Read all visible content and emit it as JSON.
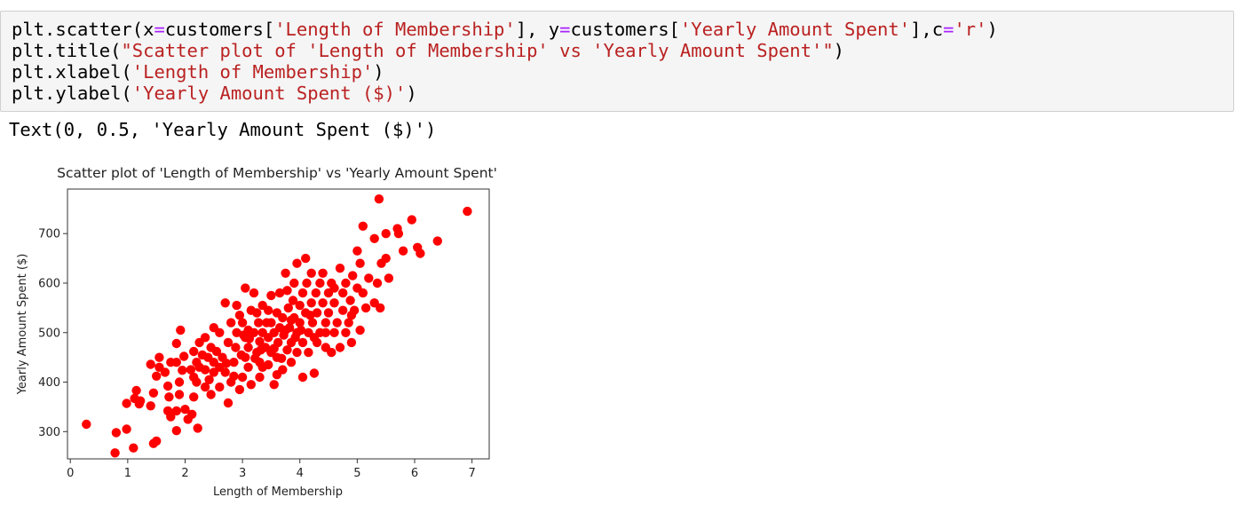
{
  "code_cell": {
    "lines": [
      [
        {
          "t": "plt.scatter(x",
          "c": ""
        },
        {
          "t": "=",
          "c": "op"
        },
        {
          "t": "customers[",
          "c": ""
        },
        {
          "t": "'Length of Membership'",
          "c": "str"
        },
        {
          "t": "], y",
          "c": ""
        },
        {
          "t": "=",
          "c": "op"
        },
        {
          "t": "customers[",
          "c": ""
        },
        {
          "t": "'Yearly Amount Spent'",
          "c": "str"
        },
        {
          "t": "],c",
          "c": ""
        },
        {
          "t": "=",
          "c": "op"
        },
        {
          "t": "'r'",
          "c": "str"
        },
        {
          "t": ")",
          "c": ""
        }
      ],
      [
        {
          "t": "plt.title(",
          "c": ""
        },
        {
          "t": "\"Scatter plot of 'Length of Membership' vs 'Yearly Amount Spent'\"",
          "c": "str"
        },
        {
          "t": ")",
          "c": ""
        }
      ],
      [
        {
          "t": "plt.xlabel(",
          "c": ""
        },
        {
          "t": "'Length of Membership'",
          "c": "str"
        },
        {
          "t": ")",
          "c": ""
        }
      ],
      [
        {
          "t": "plt.ylabel(",
          "c": ""
        },
        {
          "t": "'Yearly Amount Spent ($)'",
          "c": "str"
        },
        {
          "t": ")",
          "c": ""
        }
      ]
    ]
  },
  "output": {
    "text": "Text(0, 0.5, 'Yearly Amount Spent ($)')"
  },
  "chart_data": {
    "type": "scatter",
    "title": "Scatter plot of 'Length of Membership' vs 'Yearly Amount Spent'",
    "xlabel": "Length of Membership",
    "ylabel": "Yearly Amount Spent ($)",
    "xlim": [
      -0.05,
      7.3
    ],
    "ylim": [
      245,
      790
    ],
    "xticks": [
      0,
      1,
      2,
      3,
      4,
      5,
      6,
      7
    ],
    "yticks": [
      300,
      400,
      500,
      600,
      700
    ],
    "grid": false,
    "color": "#ff0000",
    "points": [
      [
        0.28,
        315
      ],
      [
        0.78,
        257
      ],
      [
        0.8,
        298
      ],
      [
        0.98,
        305
      ],
      [
        1.1,
        267
      ],
      [
        0.98,
        357
      ],
      [
        1.12,
        367
      ],
      [
        1.15,
        383
      ],
      [
        1.2,
        356
      ],
      [
        1.22,
        362
      ],
      [
        1.45,
        276
      ],
      [
        1.5,
        281
      ],
      [
        1.4,
        352
      ],
      [
        1.45,
        378
      ],
      [
        1.5,
        412
      ],
      [
        1.4,
        436
      ],
      [
        1.55,
        430
      ],
      [
        1.55,
        450
      ],
      [
        1.65,
        420
      ],
      [
        1.7,
        392
      ],
      [
        1.7,
        342
      ],
      [
        1.75,
        330
      ],
      [
        1.85,
        302
      ],
      [
        1.85,
        342
      ],
      [
        1.9,
        375
      ],
      [
        1.9,
        400
      ],
      [
        1.95,
        424
      ],
      [
        1.85,
        440
      ],
      [
        1.85,
        478
      ],
      [
        1.92,
        505
      ],
      [
        1.72,
        370
      ],
      [
        1.75,
        440
      ],
      [
        2.0,
        345
      ],
      [
        2.05,
        325
      ],
      [
        2.12,
        335
      ],
      [
        2.22,
        307
      ],
      [
        2.15,
        370
      ],
      [
        2.2,
        400
      ],
      [
        2.2,
        440
      ],
      [
        2.1,
        425
      ],
      [
        2.15,
        462
      ],
      [
        2.25,
        480
      ],
      [
        2.3,
        455
      ],
      [
        2.35,
        425
      ],
      [
        2.35,
        390
      ],
      [
        2.42,
        405
      ],
      [
        2.45,
        375
      ],
      [
        2.5,
        420
      ],
      [
        2.5,
        440
      ],
      [
        2.55,
        462
      ],
      [
        2.6,
        390
      ],
      [
        2.6,
        500
      ],
      [
        2.65,
        450
      ],
      [
        2.7,
        420
      ],
      [
        2.75,
        480
      ],
      [
        2.75,
        358
      ],
      [
        2.8,
        400
      ],
      [
        2.8,
        520
      ],
      [
        2.85,
        440
      ],
      [
        2.88,
        470
      ],
      [
        2.9,
        500
      ],
      [
        2.95,
        385
      ],
      [
        2.9,
        555
      ],
      [
        2.95,
        535
      ],
      [
        3.0,
        520
      ],
      [
        3.0,
        410
      ],
      [
        3.05,
        450
      ],
      [
        3.05,
        490
      ],
      [
        3.1,
        470
      ],
      [
        3.1,
        505
      ],
      [
        3.1,
        430
      ],
      [
        3.15,
        395
      ],
      [
        3.15,
        545
      ],
      [
        3.2,
        500
      ],
      [
        3.2,
        580
      ],
      [
        3.25,
        460
      ],
      [
        3.28,
        520
      ],
      [
        3.3,
        410
      ],
      [
        3.3,
        440
      ],
      [
        3.3,
        482
      ],
      [
        3.35,
        500
      ],
      [
        3.35,
        555
      ],
      [
        3.4,
        470
      ],
      [
        3.42,
        520
      ],
      [
        3.45,
        435
      ],
      [
        3.45,
        490
      ],
      [
        3.5,
        520
      ],
      [
        3.5,
        460
      ],
      [
        3.5,
        575
      ],
      [
        3.55,
        395
      ],
      [
        3.55,
        500
      ],
      [
        3.6,
        540
      ],
      [
        3.6,
        450
      ],
      [
        3.62,
        480
      ],
      [
        3.65,
        510
      ],
      [
        3.65,
        580
      ],
      [
        3.7,
        425
      ],
      [
        3.7,
        530
      ],
      [
        3.72,
        495
      ],
      [
        3.75,
        620
      ],
      [
        3.78,
        465
      ],
      [
        3.8,
        550
      ],
      [
        3.82,
        510
      ],
      [
        3.85,
        440
      ],
      [
        3.85,
        480
      ],
      [
        3.88,
        565
      ],
      [
        3.9,
        530
      ],
      [
        3.9,
        600
      ],
      [
        3.95,
        500
      ],
      [
        3.95,
        460
      ],
      [
        3.95,
        640
      ],
      [
        4.0,
        555
      ],
      [
        4.0,
        520
      ],
      [
        4.05,
        580
      ],
      [
        4.05,
        480
      ],
      [
        4.05,
        410
      ],
      [
        4.1,
        540
      ],
      [
        4.1,
        650
      ],
      [
        4.12,
        600
      ],
      [
        4.15,
        500
      ],
      [
        4.15,
        460
      ],
      [
        4.2,
        560
      ],
      [
        4.2,
        620
      ],
      [
        4.22,
        520
      ],
      [
        4.25,
        418
      ],
      [
        4.28,
        580
      ],
      [
        4.3,
        540
      ],
      [
        4.3,
        480
      ],
      [
        4.35,
        600
      ],
      [
        4.35,
        500
      ],
      [
        4.4,
        620
      ],
      [
        4.4,
        560
      ],
      [
        4.45,
        520
      ],
      [
        4.45,
        470
      ],
      [
        4.5,
        580
      ],
      [
        4.5,
        540
      ],
      [
        4.55,
        460
      ],
      [
        4.55,
        600
      ],
      [
        4.6,
        500
      ],
      [
        4.6,
        560
      ],
      [
        4.65,
        520
      ],
      [
        4.7,
        470
      ],
      [
        4.7,
        630
      ],
      [
        4.75,
        580
      ],
      [
        4.75,
        545
      ],
      [
        4.8,
        500
      ],
      [
        4.8,
        600
      ],
      [
        4.85,
        520
      ],
      [
        4.88,
        565
      ],
      [
        4.9,
        480
      ],
      [
        4.92,
        615
      ],
      [
        4.95,
        545
      ],
      [
        5.0,
        590
      ],
      [
        5.0,
        665
      ],
      [
        5.05,
        505
      ],
      [
        5.05,
        640
      ],
      [
        5.1,
        715
      ],
      [
        5.1,
        580
      ],
      [
        5.15,
        550
      ],
      [
        5.2,
        610
      ],
      [
        5.3,
        690
      ],
      [
        5.3,
        560
      ],
      [
        5.35,
        600
      ],
      [
        5.38,
        770
      ],
      [
        5.4,
        550
      ],
      [
        5.42,
        640
      ],
      [
        5.5,
        700
      ],
      [
        5.55,
        610
      ],
      [
        5.5,
        650
      ],
      [
        5.7,
        710
      ],
      [
        5.72,
        700
      ],
      [
        5.8,
        665
      ],
      [
        5.95,
        728
      ],
      [
        6.05,
        672
      ],
      [
        6.1,
        660
      ],
      [
        6.4,
        685
      ],
      [
        6.92,
        745
      ],
      [
        3.25,
        540
      ],
      [
        3.05,
        590
      ],
      [
        2.7,
        560
      ],
      [
        2.5,
        510
      ],
      [
        2.35,
        490
      ],
      [
        2.25,
        430
      ],
      [
        2.15,
        410
      ],
      [
        1.98,
        452
      ],
      [
        3.35,
        430
      ],
      [
        3.6,
        415
      ],
      [
        2.98,
        455
      ],
      [
        3.68,
        448
      ],
      [
        3.12,
        488
      ],
      [
        4.25,
        490
      ],
      [
        4.45,
        500
      ],
      [
        3.75,
        505
      ],
      [
        3.45,
        545
      ],
      [
        3.85,
        525
      ],
      [
        4.02,
        505
      ],
      [
        3.55,
        468
      ],
      [
        3.22,
        448
      ],
      [
        2.85,
        412
      ],
      [
        2.6,
        430
      ],
      [
        2.45,
        470
      ],
      [
        4.6,
        590
      ],
      [
        4.9,
        535
      ],
      [
        3.78,
        585
      ],
      [
        3.32,
        465
      ],
      [
        4.18,
        535
      ],
      [
        3.92,
        490
      ],
      [
        3.02,
        495
      ],
      [
        2.72,
        438
      ],
      [
        2.4,
        450
      ]
    ]
  }
}
